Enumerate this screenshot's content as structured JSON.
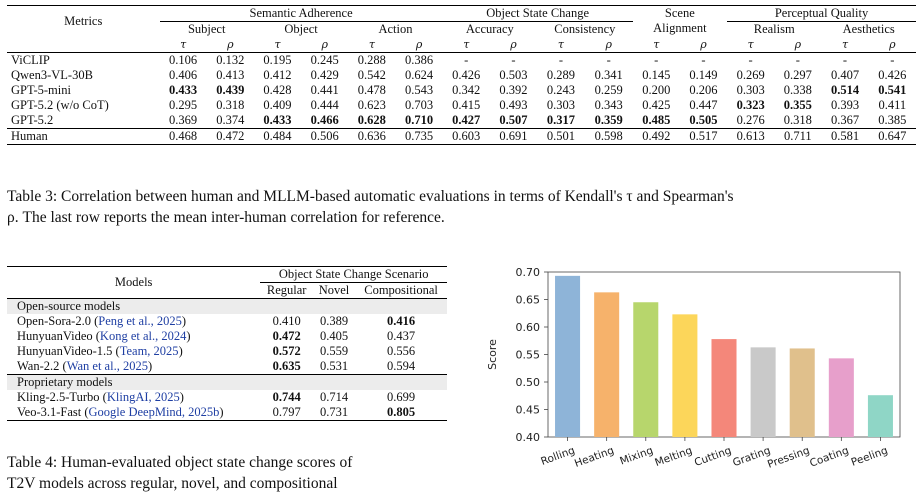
{
  "table3": {
    "metrics_header": "Metrics",
    "groups": [
      "Semantic Adherence",
      "Object State Change",
      "Scene Alignment",
      "Perceptual Quality"
    ],
    "scene_l1": "Scene",
    "scene_l2": "Alignment",
    "subgroups": [
      "Subject",
      "Object",
      "Action",
      "Accuracy",
      "Consistency",
      "Realism",
      "Aesthetics"
    ],
    "tau": "τ",
    "rho": "ρ",
    "rows": [
      {
        "name": "ViCLIP",
        "values": [
          "0.106",
          "0.132",
          "0.195",
          "0.245",
          "0.288",
          "0.386",
          "-",
          "-",
          "-",
          "-",
          "-",
          "-",
          "-",
          "-",
          "-",
          "-"
        ],
        "bold": []
      },
      {
        "name": "Qwen3-VL-30B",
        "values": [
          "0.406",
          "0.413",
          "0.412",
          "0.429",
          "0.542",
          "0.624",
          "0.426",
          "0.503",
          "0.289",
          "0.341",
          "0.145",
          "0.149",
          "0.269",
          "0.297",
          "0.407",
          "0.426"
        ],
        "bold": []
      },
      {
        "name": "GPT-5-mini",
        "values": [
          "0.433",
          "0.439",
          "0.428",
          "0.441",
          "0.478",
          "0.543",
          "0.342",
          "0.392",
          "0.243",
          "0.259",
          "0.200",
          "0.206",
          "0.303",
          "0.338",
          "0.514",
          "0.541"
        ],
        "bold": [
          0,
          1,
          14,
          15
        ]
      },
      {
        "name": "GPT-5.2 (w/o CoT)",
        "values": [
          "0.295",
          "0.318",
          "0.409",
          "0.444",
          "0.623",
          "0.703",
          "0.415",
          "0.493",
          "0.303",
          "0.343",
          "0.425",
          "0.447",
          "0.323",
          "0.355",
          "0.393",
          "0.411"
        ],
        "bold": [
          12,
          13
        ]
      },
      {
        "name": "GPT-5.2",
        "values": [
          "0.369",
          "0.374",
          "0.433",
          "0.466",
          "0.628",
          "0.710",
          "0.427",
          "0.507",
          "0.317",
          "0.359",
          "0.485",
          "0.505",
          "0.276",
          "0.318",
          "0.367",
          "0.385"
        ],
        "bold": [
          2,
          3,
          4,
          5,
          6,
          7,
          8,
          9,
          10,
          11
        ]
      },
      {
        "name": "Human",
        "values": [
          "0.468",
          "0.472",
          "0.484",
          "0.506",
          "0.636",
          "0.735",
          "0.603",
          "0.691",
          "0.501",
          "0.598",
          "0.492",
          "0.517",
          "0.613",
          "0.711",
          "0.581",
          "0.647"
        ],
        "bold": []
      }
    ],
    "caption_l1": "Table 3: Correlation between human and MLLM-based automatic evaluations in terms of Kendall's τ and Spearman's",
    "caption_l2": "ρ. The last row reports the mean inter-human correlation for reference."
  },
  "table4": {
    "models_header": "Models",
    "group_header": "Object State Change Scenario",
    "cols": [
      "Regular",
      "Novel",
      "Compositional"
    ],
    "sec_open": "Open-source models",
    "sec_prop": "Proprietary models",
    "open_rows": [
      {
        "name": "Open-Sora-2.0",
        "cite": "Peng et al., 2025",
        "values": [
          "0.410",
          "0.389",
          "0.416"
        ],
        "bold": [
          2
        ]
      },
      {
        "name": "HunyuanVideo",
        "cite": "Kong et al., 2024",
        "values": [
          "0.472",
          "0.405",
          "0.437"
        ],
        "bold": [
          0
        ]
      },
      {
        "name": "HunyuanVideo-1.5",
        "cite": "Team, 2025",
        "values": [
          "0.572",
          "0.559",
          "0.556"
        ],
        "bold": [
          0
        ]
      },
      {
        "name": "Wan-2.2",
        "cite": "Wan et al., 2025",
        "values": [
          "0.635",
          "0.531",
          "0.594"
        ],
        "bold": [
          0
        ]
      }
    ],
    "prop_rows": [
      {
        "name": "Kling-2.5-Turbo",
        "cite": "KlingAI, 2025",
        "values": [
          "0.744",
          "0.714",
          "0.699"
        ],
        "bold": [
          0
        ]
      },
      {
        "name": "Veo-3.1-Fast",
        "cite": "Google DeepMind, 2025b",
        "values": [
          "0.797",
          "0.731",
          "0.805"
        ],
        "bold": [
          2
        ]
      }
    ],
    "caption_l1": "Table 4: Human-evaluated object state change scores of",
    "caption_l2": "T2V models across regular, novel, and compositional"
  },
  "chart_data": {
    "type": "bar",
    "ylabel": "Score",
    "categories": [
      "Rolling",
      "Heating",
      "Mixing",
      "Melting",
      "Cutting",
      "Grating",
      "Pressing",
      "Coating",
      "Peeling"
    ],
    "values": [
      0.693,
      0.663,
      0.645,
      0.623,
      0.578,
      0.563,
      0.561,
      0.543,
      0.476
    ],
    "colors": [
      "#8eb4d8",
      "#f6b26b",
      "#b7d66c",
      "#fcd65a",
      "#f4877a",
      "#c9c9c9",
      "#e0c08c",
      "#e79fcb",
      "#8fd6c6"
    ],
    "ylim": [
      0.4,
      0.7
    ],
    "yticks": [
      "0.40",
      "0.45",
      "0.50",
      "0.55",
      "0.60",
      "0.65",
      "0.70"
    ]
  }
}
